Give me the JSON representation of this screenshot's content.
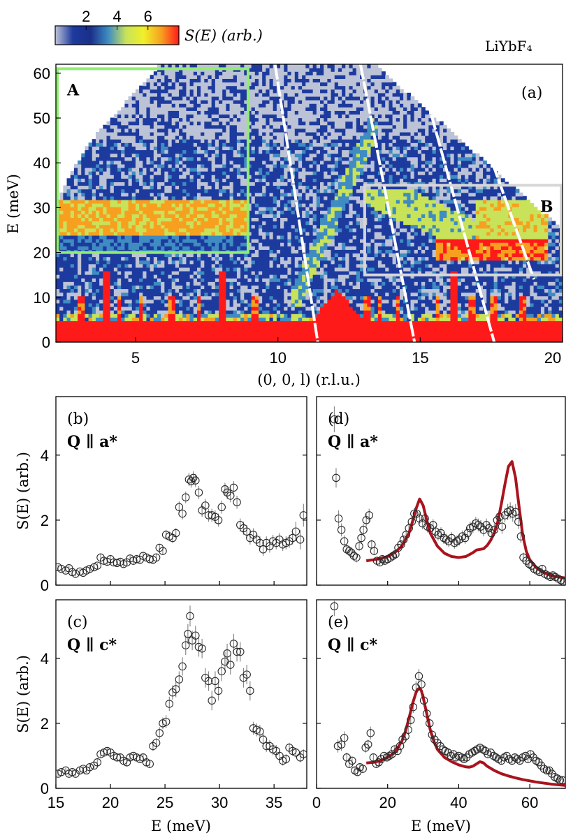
{
  "colorbar": {
    "ticks": [
      2,
      4,
      6
    ],
    "label": "S(E) (arb.)",
    "colors": [
      "#bcc3d6",
      "#1d3a9e",
      "#1a2f8a",
      "#3e8cc2",
      "#c8e25a",
      "#f0f02a",
      "#f7a020",
      "#ff1a1a"
    ]
  },
  "compound": "LiYbF₄",
  "chart_data": [
    {
      "id": "a",
      "type": "heatmap",
      "panel_label": "(a)",
      "xlabel": "(0, 0, l) (r.l.u.)",
      "ylabel": "E (meV)",
      "xlim": [
        2.2,
        20
      ],
      "ylim": [
        0,
        62
      ],
      "xticks": [
        5,
        10,
        15,
        20
      ],
      "yticks": [
        0,
        10,
        20,
        30,
        40,
        50,
        60
      ],
      "level_colors": [
        "#bcc3d6",
        "#1d3a9e",
        "#3e8cc2",
        "#c8e25a",
        "#f7a020",
        "#ff1a1a"
      ],
      "boxes": [
        {
          "label": "A",
          "x": [
            2.2,
            9.0
          ],
          "y": [
            20,
            61
          ],
          "color": "#90ee70"
        },
        {
          "label": "B",
          "x": [
            13.0,
            20.0
          ],
          "y": [
            15,
            35
          ],
          "color": "#d6d6d6"
        }
      ]
    },
    {
      "id": "b",
      "type": "scatter",
      "panel_label": "(b)",
      "q_label": "Q ∥ a*",
      "xlim": [
        15,
        38
      ],
      "ylim": [
        0,
        5.8
      ],
      "yticks": [
        0,
        2,
        4
      ],
      "ylabel": "S(E) (arb.)",
      "x": [
        15.2,
        15.5,
        15.9,
        16.2,
        16.5,
        16.8,
        17.2,
        17.5,
        17.8,
        18.1,
        18.5,
        18.8,
        19.1,
        19.4,
        19.7,
        20.0,
        20.3,
        20.6,
        20.9,
        21.2,
        21.5,
        21.8,
        22.1,
        22.4,
        22.7,
        23.0,
        23.3,
        23.6,
        23.9,
        24.2,
        24.5,
        24.8,
        25.1,
        25.4,
        25.7,
        26.0,
        26.3,
        26.6,
        26.9,
        27.2,
        27.4,
        27.6,
        27.8,
        28.1,
        28.4,
        28.7,
        29.0,
        29.3,
        29.6,
        29.9,
        30.2,
        30.5,
        30.7,
        31.0,
        31.3,
        31.6,
        31.9,
        32.2,
        32.5,
        32.8,
        33.1,
        33.4,
        33.7,
        34.0,
        34.3,
        34.6,
        34.9,
        35.2,
        35.5,
        35.8,
        36.1,
        36.4,
        36.7,
        37.0,
        37.4,
        37.7
      ],
      "values": [
        0.55,
        0.5,
        0.45,
        0.52,
        0.4,
        0.35,
        0.42,
        0.38,
        0.45,
        0.5,
        0.55,
        0.6,
        0.85,
        0.75,
        0.72,
        0.8,
        0.7,
        0.68,
        0.72,
        0.65,
        0.7,
        0.82,
        0.75,
        0.8,
        0.78,
        0.9,
        0.85,
        0.8,
        0.78,
        0.85,
        1.15,
        1.05,
        1.55,
        1.5,
        1.45,
        1.6,
        2.4,
        2.2,
        2.7,
        3.25,
        3.2,
        3.3,
        3.22,
        2.85,
        2.3,
        2.45,
        2.15,
        2.15,
        2.1,
        2.0,
        2.4,
        2.95,
        2.85,
        2.75,
        3.0,
        2.55,
        1.85,
        1.75,
        1.65,
        1.45,
        1.55,
        1.4,
        1.3,
        1.1,
        1.3,
        1.2,
        1.35,
        1.3,
        1.4,
        1.25,
        1.3,
        1.35,
        1.45,
        1.65,
        1.4,
        2.15
      ],
      "errors": [
        0.08,
        0.08,
        0.08,
        0.08,
        0.08,
        0.08,
        0.08,
        0.08,
        0.08,
        0.08,
        0.08,
        0.08,
        0.1,
        0.1,
        0.1,
        0.1,
        0.1,
        0.1,
        0.1,
        0.1,
        0.1,
        0.1,
        0.1,
        0.1,
        0.1,
        0.1,
        0.1,
        0.1,
        0.1,
        0.12,
        0.12,
        0.12,
        0.15,
        0.15,
        0.15,
        0.15,
        0.18,
        0.18,
        0.18,
        0.2,
        0.2,
        0.2,
        0.2,
        0.2,
        0.2,
        0.2,
        0.2,
        0.2,
        0.2,
        0.2,
        0.2,
        0.2,
        0.2,
        0.2,
        0.2,
        0.2,
        0.2,
        0.2,
        0.2,
        0.2,
        0.2,
        0.2,
        0.2,
        0.2,
        0.2,
        0.2,
        0.2,
        0.2,
        0.2,
        0.2,
        0.2,
        0.2,
        0.2,
        0.3,
        0.3,
        0.35
      ]
    },
    {
      "id": "c",
      "type": "scatter",
      "panel_label": "(c)",
      "q_label": "Q ∥ c*",
      "xlabel": "E (meV)",
      "ylabel": "S(E) (arb.)",
      "xlim": [
        15,
        38
      ],
      "ylim": [
        0,
        5.8
      ],
      "xticks": [
        15,
        20,
        25,
        30,
        35
      ],
      "yticks": [
        0,
        2,
        4
      ],
      "x": [
        15.2,
        15.5,
        15.9,
        16.2,
        16.5,
        16.8,
        17.2,
        17.5,
        17.8,
        18.1,
        18.5,
        18.8,
        19.1,
        19.4,
        19.7,
        20.0,
        20.3,
        20.6,
        20.9,
        21.2,
        21.5,
        21.8,
        22.1,
        22.4,
        22.7,
        23.0,
        23.3,
        23.6,
        23.9,
        24.2,
        24.5,
        24.8,
        25.1,
        25.4,
        25.7,
        26.0,
        26.3,
        26.6,
        26.9,
        27.1,
        27.3,
        27.5,
        27.8,
        28.1,
        28.4,
        28.7,
        29.0,
        29.3,
        29.6,
        29.9,
        30.2,
        30.5,
        30.7,
        31.0,
        31.3,
        31.6,
        31.9,
        32.2,
        32.5,
        32.8,
        33.1,
        33.4,
        33.7,
        34.0,
        34.3,
        34.6,
        34.9,
        35.2,
        35.5,
        35.8,
        36.1,
        36.4,
        36.7,
        37.0,
        37.4,
        37.7
      ],
      "values": [
        0.45,
        0.5,
        0.55,
        0.45,
        0.5,
        0.45,
        0.55,
        0.6,
        0.55,
        0.65,
        0.7,
        0.8,
        1.05,
        1.1,
        1.15,
        1.1,
        1.0,
        0.95,
        0.95,
        0.85,
        0.8,
        0.95,
        1.0,
        0.95,
        0.9,
        0.95,
        0.8,
        0.75,
        1.3,
        1.4,
        1.7,
        2.0,
        2.05,
        2.6,
        2.95,
        3.05,
        3.35,
        3.75,
        4.4,
        4.75,
        5.3,
        4.55,
        4.7,
        4.35,
        4.3,
        3.4,
        3.3,
        2.7,
        3.3,
        3.0,
        3.6,
        3.9,
        4.15,
        3.8,
        4.45,
        4.2,
        4.2,
        3.4,
        3.5,
        3.0,
        1.85,
        1.8,
        1.75,
        1.5,
        1.3,
        1.3,
        1.2,
        1.15,
        1.0,
        0.85,
        0.9,
        1.25,
        1.15,
        1.1,
        0.95,
        1.05
      ],
      "errors": [
        0.08,
        0.08,
        0.08,
        0.08,
        0.08,
        0.08,
        0.08,
        0.08,
        0.08,
        0.1,
        0.1,
        0.1,
        0.12,
        0.12,
        0.12,
        0.12,
        0.12,
        0.12,
        0.12,
        0.12,
        0.12,
        0.12,
        0.12,
        0.12,
        0.12,
        0.12,
        0.12,
        0.12,
        0.15,
        0.15,
        0.18,
        0.18,
        0.2,
        0.22,
        0.22,
        0.25,
        0.25,
        0.28,
        0.3,
        0.3,
        0.32,
        0.3,
        0.3,
        0.3,
        0.3,
        0.3,
        0.3,
        0.3,
        0.3,
        0.3,
        0.3,
        0.3,
        0.3,
        0.3,
        0.3,
        0.3,
        0.3,
        0.3,
        0.3,
        0.3,
        0.2,
        0.2,
        0.2,
        0.2,
        0.18,
        0.18,
        0.18,
        0.18,
        0.15,
        0.15,
        0.15,
        0.15,
        0.15,
        0.15,
        0.15,
        0.15
      ]
    },
    {
      "id": "d",
      "type": "scatter",
      "panel_label": "(d)",
      "q_label": "Q ∥ a*",
      "xlim": [
        0,
        70
      ],
      "ylim": [
        0,
        5.8
      ],
      "x": [
        5.0,
        5.5,
        6.2,
        7.0,
        7.8,
        8.5,
        9.2,
        9.8,
        10.5,
        11.2,
        12.0,
        12.6,
        13.2,
        14.0,
        14.8,
        15.5,
        16.2,
        17.0,
        17.8,
        18.5,
        19.2,
        20.0,
        20.8,
        21.5,
        22.2,
        23.0,
        23.8,
        24.5,
        25.2,
        26.0,
        26.8,
        27.5,
        28.2,
        29.0,
        29.8,
        30.5,
        31.2,
        32.0,
        32.8,
        33.5,
        34.2,
        35.0,
        35.8,
        36.5,
        37.2,
        38.0,
        38.8,
        39.5,
        40.2,
        41.0,
        41.8,
        42.5,
        43.2,
        44.0,
        44.8,
        45.5,
        46.2,
        47.0,
        47.8,
        48.5,
        49.2,
        50.0,
        50.8,
        51.5,
        52.2,
        53.0,
        53.8,
        54.5,
        55.2,
        56.0,
        56.8,
        57.5,
        58.2,
        59.0,
        59.8,
        60.5,
        61.2,
        62.0,
        62.8,
        63.5,
        64.2,
        65.0,
        65.8,
        66.5,
        67.2,
        68.0,
        68.8,
        69.5
      ],
      "values": [
        5.1,
        3.3,
        2.05,
        1.7,
        1.35,
        1.1,
        1.05,
        1.0,
        0.9,
        0.85,
        1.2,
        1.45,
        1.7,
        2.0,
        2.15,
        1.25,
        1.05,
        0.75,
        0.7,
        0.8,
        0.75,
        0.8,
        0.85,
        0.9,
        0.95,
        1.15,
        1.25,
        1.4,
        1.55,
        1.75,
        1.95,
        2.2,
        2.2,
        2.05,
        1.9,
        2.05,
        1.8,
        1.75,
        1.85,
        1.65,
        1.55,
        1.6,
        1.45,
        1.4,
        1.35,
        1.45,
        1.3,
        1.35,
        1.4,
        1.5,
        1.45,
        1.6,
        1.75,
        1.8,
        1.9,
        1.85,
        1.8,
        1.7,
        1.85,
        1.75,
        1.6,
        1.7,
        2.0,
        2.1,
        1.8,
        2.15,
        2.25,
        2.3,
        2.2,
        2.25,
        1.95,
        1.5,
        0.85,
        0.75,
        0.65,
        0.6,
        0.5,
        0.45,
        0.4,
        0.5,
        0.35,
        0.3,
        0.25,
        0.3,
        0.25,
        0.2,
        0.15,
        0.1
      ],
      "errors": [
        0.4,
        0.3,
        0.25,
        0.2,
        0.18,
        0.15,
        0.15,
        0.15,
        0.15,
        0.15,
        0.15,
        0.18,
        0.18,
        0.2,
        0.2,
        0.15,
        0.12,
        0.1,
        0.1,
        0.1,
        0.1,
        0.1,
        0.1,
        0.1,
        0.1,
        0.12,
        0.12,
        0.12,
        0.15,
        0.15,
        0.15,
        0.18,
        0.18,
        0.18,
        0.18,
        0.18,
        0.18,
        0.18,
        0.18,
        0.18,
        0.18,
        0.18,
        0.18,
        0.18,
        0.18,
        0.18,
        0.18,
        0.18,
        0.18,
        0.18,
        0.18,
        0.18,
        0.2,
        0.2,
        0.2,
        0.2,
        0.2,
        0.2,
        0.2,
        0.2,
        0.2,
        0.2,
        0.22,
        0.22,
        0.22,
        0.22,
        0.25,
        0.25,
        0.25,
        0.25,
        0.22,
        0.2,
        0.15,
        0.15,
        0.15,
        0.15,
        0.12,
        0.12,
        0.12,
        0.12,
        0.12,
        0.12,
        0.12,
        0.12,
        0.12,
        0.12,
        0.12,
        0.12
      ],
      "fit": {
        "color": "#a8141e",
        "x": [
          14,
          16,
          18,
          20,
          22,
          24,
          26,
          27,
          28,
          29,
          30,
          31,
          32,
          34,
          36,
          38,
          40,
          42,
          44,
          45,
          46,
          47,
          48,
          49,
          50,
          51,
          52,
          53,
          54,
          55,
          56,
          57,
          58,
          59,
          60,
          62,
          64,
          66,
          68,
          70
        ],
        "y": [
          0.75,
          0.78,
          0.82,
          0.88,
          1.0,
          1.2,
          1.6,
          1.95,
          2.35,
          2.65,
          2.45,
          2.0,
          1.6,
          1.2,
          0.98,
          0.88,
          0.85,
          0.88,
          1.0,
          1.08,
          1.1,
          1.12,
          1.22,
          1.38,
          1.6,
          1.95,
          2.5,
          3.1,
          3.65,
          3.8,
          3.3,
          2.4,
          1.55,
          1.05,
          0.78,
          0.52,
          0.38,
          0.3,
          0.25,
          0.22
        ]
      }
    },
    {
      "id": "e",
      "type": "scatter",
      "panel_label": "(e)",
      "q_label": "Q ∥ c*",
      "xlabel": "E (meV)",
      "xlim": [
        0,
        70
      ],
      "ylim": [
        0,
        5.8
      ],
      "xticks": [
        0,
        20,
        40,
        60
      ],
      "x": [
        5.0,
        6.0,
        7.0,
        7.8,
        8.5,
        9.2,
        10.0,
        10.8,
        11.5,
        12.2,
        13.0,
        13.8,
        14.5,
        15.2,
        16.0,
        16.8,
        17.5,
        18.2,
        19.0,
        19.8,
        20.5,
        21.2,
        22.0,
        22.8,
        23.5,
        24.2,
        25.0,
        25.8,
        26.5,
        27.2,
        28.0,
        28.8,
        29.5,
        30.2,
        31.0,
        31.8,
        32.5,
        33.2,
        34.0,
        34.8,
        35.5,
        36.2,
        37.0,
        37.8,
        38.5,
        39.2,
        40.0,
        40.8,
        41.5,
        42.2,
        43.0,
        43.8,
        44.5,
        45.2,
        46.0,
        46.8,
        47.5,
        48.2,
        49.0,
        49.8,
        50.5,
        51.2,
        52.0,
        52.8,
        53.5,
        54.2,
        55.0,
        55.8,
        56.5,
        57.2,
        58.0,
        58.8,
        59.5,
        60.2,
        61.0,
        61.8,
        62.5,
        63.2,
        64.0,
        64.8,
        65.5,
        66.2,
        67.0,
        67.8,
        68.5,
        69.2
      ],
      "values": [
        5.6,
        1.3,
        1.35,
        1.55,
        0.95,
        0.75,
        0.85,
        0.55,
        0.5,
        0.65,
        0.6,
        1.25,
        1.35,
        1.7,
        0.95,
        0.75,
        0.8,
        0.9,
        1.0,
        0.95,
        1.0,
        1.05,
        1.2,
        1.15,
        1.3,
        1.5,
        1.6,
        1.8,
        2.1,
        2.5,
        3.1,
        3.45,
        3.2,
        2.7,
        2.3,
        2.0,
        1.65,
        1.5,
        1.4,
        1.3,
        1.2,
        1.15,
        1.1,
        1.0,
        1.05,
        0.95,
        1.0,
        0.95,
        0.9,
        0.95,
        1.05,
        1.1,
        1.15,
        1.2,
        1.25,
        1.2,
        1.15,
        1.05,
        1.1,
        1.0,
        0.95,
        0.9,
        0.85,
        0.95,
        1.0,
        0.9,
        0.85,
        0.95,
        0.9,
        0.85,
        0.95,
        1.0,
        0.9,
        1.05,
        0.95,
        0.85,
        0.8,
        0.7,
        0.6,
        0.55,
        0.55,
        0.45,
        0.35,
        0.3,
        0.25,
        0.25
      ],
      "errors": [
        0.3,
        0.2,
        0.2,
        0.2,
        0.15,
        0.12,
        0.12,
        0.1,
        0.1,
        0.12,
        0.12,
        0.15,
        0.15,
        0.2,
        0.12,
        0.1,
        0.1,
        0.1,
        0.1,
        0.1,
        0.1,
        0.1,
        0.12,
        0.12,
        0.12,
        0.15,
        0.15,
        0.15,
        0.18,
        0.18,
        0.2,
        0.22,
        0.2,
        0.2,
        0.18,
        0.15,
        0.15,
        0.12,
        0.12,
        0.12,
        0.12,
        0.12,
        0.12,
        0.12,
        0.12,
        0.12,
        0.12,
        0.12,
        0.12,
        0.12,
        0.12,
        0.12,
        0.12,
        0.12,
        0.12,
        0.12,
        0.12,
        0.12,
        0.12,
        0.12,
        0.12,
        0.12,
        0.12,
        0.12,
        0.12,
        0.12,
        0.12,
        0.12,
        0.12,
        0.12,
        0.12,
        0.12,
        0.12,
        0.12,
        0.12,
        0.12,
        0.12,
        0.12,
        0.12,
        0.12,
        0.12,
        0.12,
        0.12,
        0.12,
        0.12,
        0.12
      ],
      "fit": {
        "color": "#a8141e",
        "x": [
          14,
          16,
          18,
          20,
          22,
          24,
          25,
          26,
          27,
          28,
          28.5,
          29,
          29.5,
          30,
          31,
          32,
          33,
          34,
          36,
          38,
          40,
          42,
          43,
          44,
          45,
          46,
          47,
          48,
          50,
          52,
          54,
          56,
          58,
          60,
          62,
          64,
          66,
          68,
          70
        ],
        "y": [
          0.78,
          0.8,
          0.85,
          0.95,
          1.1,
          1.45,
          1.75,
          2.15,
          2.6,
          2.95,
          3.05,
          3.08,
          3.0,
          2.8,
          2.3,
          1.8,
          1.45,
          1.2,
          0.95,
          0.82,
          0.72,
          0.66,
          0.65,
          0.68,
          0.75,
          0.82,
          0.78,
          0.68,
          0.55,
          0.45,
          0.38,
          0.32,
          0.27,
          0.23,
          0.19,
          0.16,
          0.13,
          0.11,
          0.09
        ]
      }
    }
  ]
}
